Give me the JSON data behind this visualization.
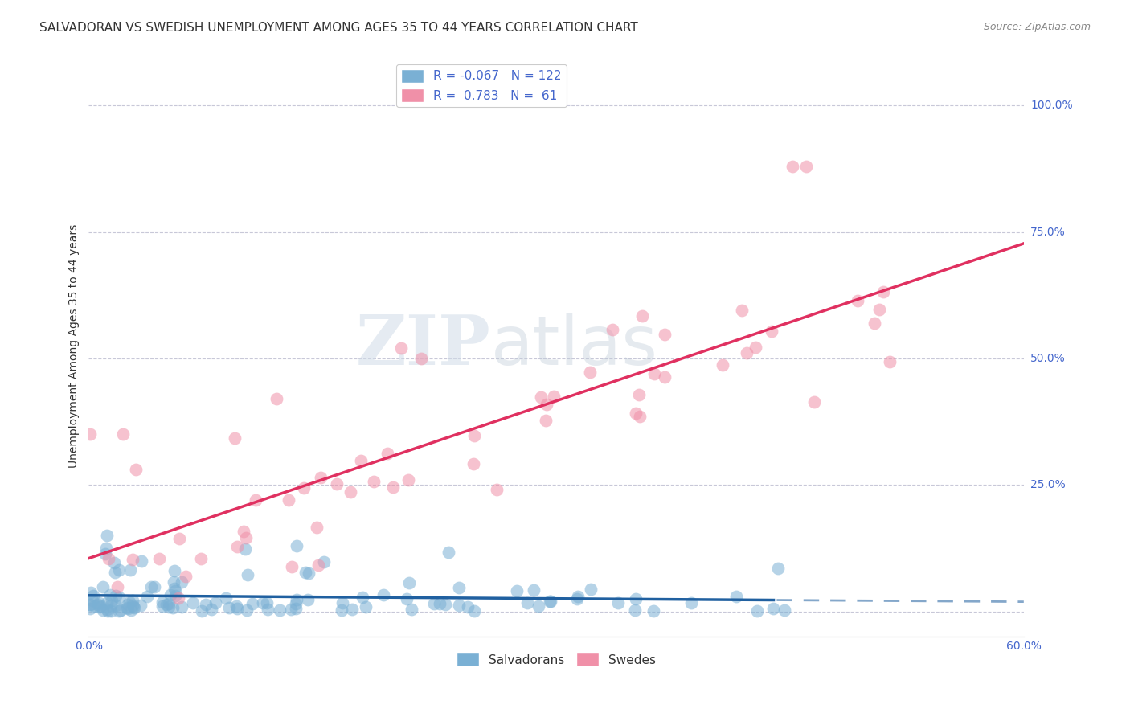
{
  "title": "SALVADORAN VS SWEDISH UNEMPLOYMENT AMONG AGES 35 TO 44 YEARS CORRELATION CHART",
  "source": "Source: ZipAtlas.com",
  "ylabel": "Unemployment Among Ages 35 to 44 years",
  "xlim": [
    0.0,
    0.6
  ],
  "ylim": [
    -0.05,
    1.1
  ],
  "salvadoran_color": "#7ab0d4",
  "swedish_color": "#f090a8",
  "salvadoran_line_color": "#2060a0",
  "swedish_line_color": "#e03060",
  "background_color": "#ffffff",
  "grid_color": "#c8c8d8",
  "watermark_zip": "ZIP",
  "watermark_atlas": "atlas",
  "title_fontsize": 11,
  "label_fontsize": 10,
  "tick_fontsize": 10,
  "legend1_labels": [
    "R = -0.067   N = 122",
    "R =  0.783   N =  61"
  ],
  "legend2_labels": [
    "Salvadorans",
    "Swedes"
  ],
  "ytick_positions": [
    0.0,
    0.25,
    0.5,
    0.75,
    1.0
  ],
  "ytick_labels": [
    "",
    "25.0%",
    "50.0%",
    "75.0%",
    "100.0%"
  ],
  "xtick_positions": [
    0.0,
    0.6
  ],
  "xtick_labels": [
    "0.0%",
    "60.0%"
  ]
}
